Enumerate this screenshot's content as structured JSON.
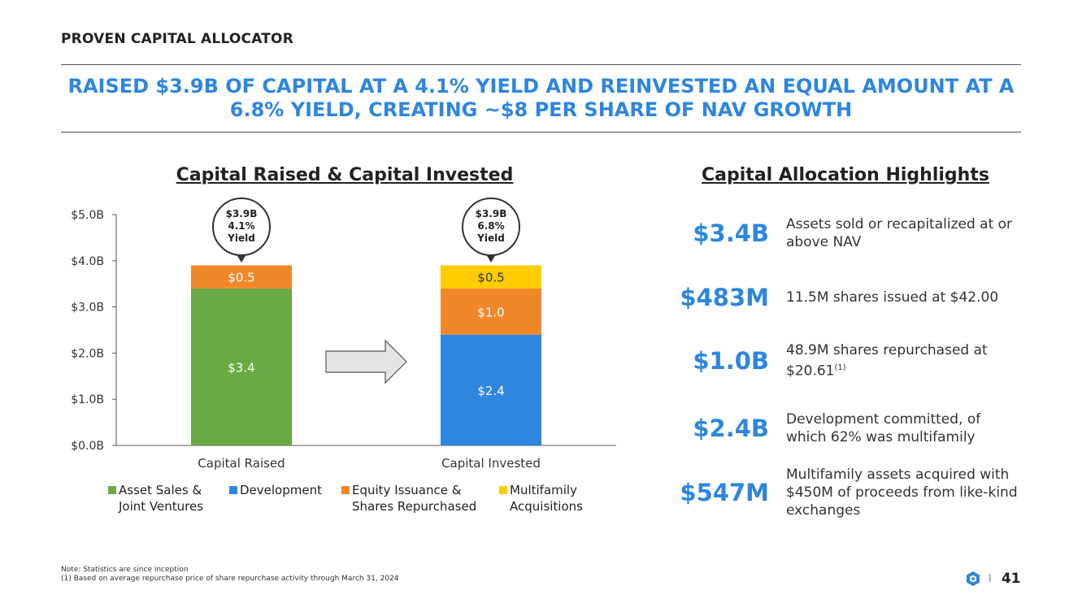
{
  "section_label": "PROVEN CAPITAL ALLOCATOR",
  "headline": {
    "line1": "RAISED $3.9B OF CAPITAL AT A 4.1% YIELD AND REINVESTED AN EQUAL AMOUNT AT A",
    "line2": "6.8% YIELD, CREATING ~$8 PER SHARE OF NAV GROWTH"
  },
  "chart_data": {
    "type": "bar",
    "stacked": true,
    "title": "Capital Raised & Capital Invested",
    "categories": [
      "Capital Raised",
      "Capital Invested"
    ],
    "series": [
      {
        "name": "Asset Sales & Joint Ventures",
        "legend_lines": [
          "Asset Sales &",
          "Joint Ventures"
        ],
        "color": "#6aaa44",
        "values": [
          3.4,
          0
        ],
        "labels": [
          "$3.4",
          ""
        ]
      },
      {
        "name": "Development",
        "legend_lines": [
          "Development"
        ],
        "color": "#2e86de",
        "values": [
          0,
          2.4
        ],
        "labels": [
          "",
          "$2.4"
        ]
      },
      {
        "name": "Equity Issuance & Shares Repurchased",
        "legend_lines": [
          "Equity Issuance &",
          "Shares Repurchased"
        ],
        "color": "#f0882a",
        "values": [
          0.5,
          1.0
        ],
        "labels": [
          "$0.5",
          "$1.0"
        ]
      },
      {
        "name": "Multifamily Acquisitions",
        "legend_lines": [
          "Multifamily",
          "Acquisitions"
        ],
        "color": "#ffcc00",
        "values": [
          0,
          0.5
        ],
        "labels": [
          "",
          "$0.5"
        ]
      }
    ],
    "ylim": [
      0,
      5.0
    ],
    "yticks": [
      "$0.0B",
      "$1.0B",
      "$2.0B",
      "$3.0B",
      "$4.0B",
      "$5.0B"
    ],
    "callouts": [
      {
        "lines": [
          "$3.9B",
          "4.1%",
          "Yield"
        ]
      },
      {
        "lines": [
          "$3.9B",
          "6.8%",
          "Yield"
        ]
      }
    ],
    "legend_position": "bottom"
  },
  "highlights": {
    "title": "Capital Allocation Highlights",
    "items": [
      {
        "value": "$3.4B",
        "desc": "Assets sold or recapitalized at or above NAV",
        "sup": ""
      },
      {
        "value": "$483M",
        "desc": "11.5M shares issued at $42.00",
        "sup": ""
      },
      {
        "value": "$1.0B",
        "desc": "48.9M shares repurchased at $20.61",
        "sup": "(1)"
      },
      {
        "value": "$2.4B",
        "desc": "Development committed, of which 62% was multifamily",
        "sup": ""
      },
      {
        "value": "$547M",
        "desc": "Multifamily assets acquired with $450M of proceeds from like-kind exchanges",
        "sup": ""
      }
    ]
  },
  "footnotes": {
    "note": "Note: Statistics are since inception",
    "fn1": "(1) Based on average repurchase price of share repurchase activity through March 31, 2024"
  },
  "page": {
    "separator": "I",
    "number": "41"
  },
  "colors": {
    "accent": "#2e86de",
    "green": "#6aaa44",
    "orange": "#f0882a",
    "yellow": "#ffcc00"
  }
}
